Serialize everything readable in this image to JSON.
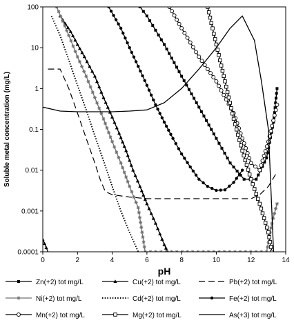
{
  "chart_data": {
    "type": "line",
    "title": "",
    "xlabel": "pH",
    "ylabel": "Soluble metal concentration (mg/L)",
    "xlim": [
      0,
      14
    ],
    "ylim": [
      0.0001,
      100
    ],
    "yscale": "log",
    "grid": false,
    "legend_position": "bottom",
    "x_ticks": [
      0,
      2,
      4,
      6,
      8,
      10,
      12,
      14
    ],
    "x_tick_labels": [
      "0",
      "2",
      "4",
      "6",
      "8",
      "10",
      "12",
      "14"
    ],
    "y_ticks": [
      0.0001,
      0.001,
      0.01,
      0.1,
      1,
      10,
      100
    ],
    "y_tick_labels": [
      "0.0001",
      "0.001",
      "0.01",
      "0.1",
      "1",
      "10",
      "100"
    ],
    "series": [
      {
        "name": "Zn(+2) tot mg/L",
        "style": "solid-square",
        "color": "#000000",
        "x": [
          5.6,
          6.0,
          7.0,
          8.0,
          9.0,
          10.0,
          10.8,
          11.6,
          12.3,
          12.9,
          13.3,
          13.5
        ],
        "y": [
          100,
          60,
          12,
          2.0,
          0.35,
          0.06,
          0.015,
          0.006,
          0.006,
          0.02,
          0.15,
          1.0
        ]
      },
      {
        "name": "Cu(+2) tot mg/L",
        "style": "solid-triangle",
        "color": "#000000",
        "x": [
          0.0,
          0.3,
          1.0,
          1.6,
          2.0,
          2.4,
          3.0,
          3.5,
          4.0,
          4.4,
          4.8,
          5.2,
          5.6,
          6.0,
          6.5,
          7.0,
          7.2
        ],
        "y": [
          0.0002,
          0.0001,
          60,
          25,
          12,
          6,
          2,
          0.6,
          0.2,
          0.08,
          0.03,
          0.01,
          0.004,
          0.0015,
          0.0005,
          0.00015,
          0.0001
        ]
      },
      {
        "name": "Pb(+2) tot mg/L",
        "style": "dashed",
        "color": "#000000",
        "x": [
          0.3,
          1.0,
          1.5,
          2.0,
          2.5,
          3.0,
          3.3,
          3.6,
          4.0,
          5.0,
          6.0,
          8.0,
          10.0,
          11.0,
          12.0,
          12.5,
          13.0,
          13.5
        ],
        "y": [
          3,
          3,
          1.0,
          0.25,
          0.06,
          0.015,
          0.006,
          0.003,
          0.0025,
          0.0022,
          0.002,
          0.002,
          0.002,
          0.002,
          0.002,
          0.0025,
          0.004,
          0.009
        ]
      },
      {
        "name": "Ni(+2) tot mg/L",
        "style": "solid-star",
        "color": "#707070",
        "x": [
          0.8,
          1.5,
          2.0,
          2.5,
          3.0,
          3.5,
          4.0,
          4.5,
          5.0,
          5.5,
          5.9,
          12.9,
          13.2,
          13.5
        ],
        "y": [
          100,
          20,
          6,
          2,
          0.6,
          0.18,
          0.05,
          0.015,
          0.004,
          0.0012,
          0.0001,
          0.0001,
          0.0005,
          0.0015
        ]
      },
      {
        "name": "Cd(+2) tot mg/L",
        "style": "dotted",
        "color": "#000000",
        "x": [
          0.5,
          1.0,
          1.5,
          2.0,
          2.5,
          3.0,
          3.5,
          4.0,
          4.5,
          5.0,
          5.5
        ],
        "y": [
          60,
          20,
          5,
          1.2,
          0.3,
          0.07,
          0.017,
          0.004,
          0.001,
          0.0003,
          0.0001
        ]
      },
      {
        "name": "Fe(+2) tot mg/L",
        "style": "solid-circle",
        "color": "#000000",
        "x": [
          3.8,
          4.5,
          5.0,
          5.5,
          6.0,
          6.5,
          7.0,
          7.5,
          8.0,
          8.5,
          9.0,
          9.5,
          10.0,
          10.5,
          11.0,
          11.5
        ],
        "y": [
          100,
          30,
          10,
          3.5,
          1.2,
          0.4,
          0.15,
          0.06,
          0.025,
          0.012,
          0.006,
          0.004,
          0.0032,
          0.0033,
          0.005,
          0.01
        ]
      },
      {
        "name": "Mn(+2) tot mg/L",
        "style": "solid-open-circle",
        "color": "#000000",
        "x": [
          7.3,
          8.0,
          9.0,
          10.0,
          11.0,
          11.5,
          12.0,
          12.5,
          13.0,
          13.5
        ],
        "y": [
          100,
          30,
          6,
          1.5,
          0.25,
          0.06,
          0.015,
          0.01,
          0.05,
          0.4
        ]
      },
      {
        "name": "Mg(+2) tot mg/L",
        "style": "solid-open-square",
        "color": "#000000",
        "x": [
          9.5,
          10.0,
          10.5,
          11.0,
          11.5,
          12.0,
          12.5,
          13.0,
          13.2
        ],
        "y": [
          100,
          12,
          1.5,
          0.18,
          0.03,
          0.006,
          0.0015,
          0.0003,
          0.0001
        ]
      },
      {
        "name": "As(+3) tot mg/L",
        "style": "solid",
        "color": "#000000",
        "x": [
          0.0,
          1.0,
          2.0,
          4.0,
          5.0,
          6.0,
          7.0,
          8.0,
          9.0,
          10.0,
          10.8,
          11.5,
          12.2,
          12.6,
          13.0,
          13.3
        ],
        "y": [
          0.35,
          0.28,
          0.27,
          0.27,
          0.28,
          0.3,
          0.45,
          1.0,
          3.0,
          10,
          30,
          60,
          15,
          1.5,
          0.1,
          0.0001
        ]
      }
    ]
  }
}
